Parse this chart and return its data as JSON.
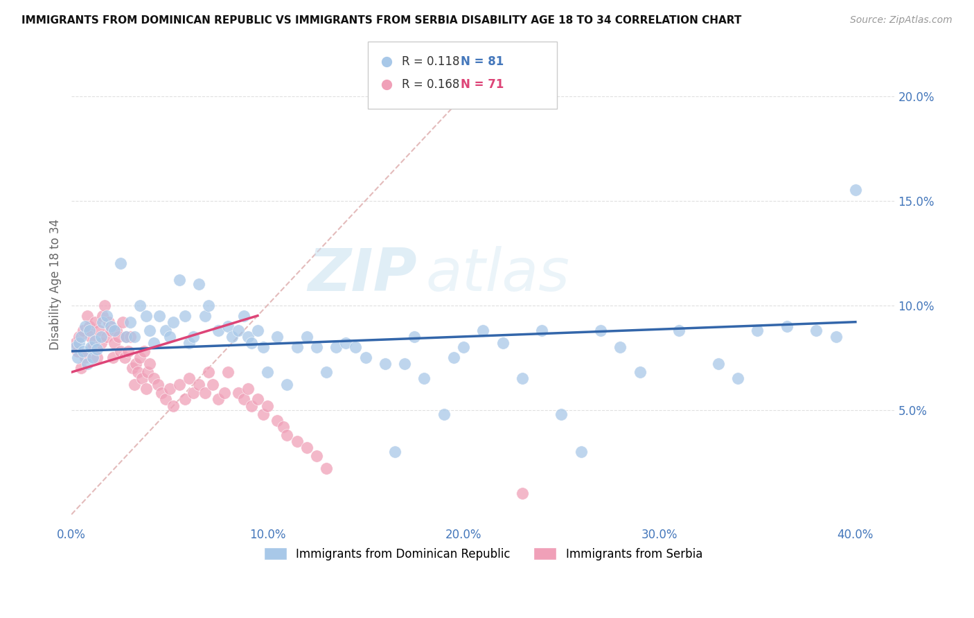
{
  "title": "IMMIGRANTS FROM DOMINICAN REPUBLIC VS IMMIGRANTS FROM SERBIA DISABILITY AGE 18 TO 34 CORRELATION CHART",
  "source": "Source: ZipAtlas.com",
  "ylabel_label": "Disability Age 18 to 34",
  "xlim": [
    0.0,
    0.42
  ],
  "ylim": [
    -0.005,
    0.225
  ],
  "xticks": [
    0.0,
    0.1,
    0.2,
    0.3,
    0.4
  ],
  "xticklabels": [
    "0.0%",
    "10.0%",
    "20.0%",
    "30.0%",
    "40.0%"
  ],
  "yticks": [
    0.05,
    0.1,
    0.15,
    0.2
  ],
  "yticklabels": [
    "5.0%",
    "10.0%",
    "15.0%",
    "20.0%"
  ],
  "blue_color": "#a8c8e8",
  "pink_color": "#f0a0b8",
  "blue_line_color": "#3366aa",
  "pink_line_color": "#dd4477",
  "diagonal_color": "#ddaaaa",
  "R_blue": 0.118,
  "N_blue": 81,
  "R_pink": 0.168,
  "N_pink": 71,
  "legend_blue_label": "Immigrants from Dominican Republic",
  "legend_pink_label": "Immigrants from Serbia",
  "watermark_zip": "ZIP",
  "watermark_atlas": "atlas",
  "blue_line_x0": 0.0,
  "blue_line_y0": 0.078,
  "blue_line_x1": 0.4,
  "blue_line_y1": 0.092,
  "pink_line_x0": 0.0,
  "pink_line_y0": 0.068,
  "pink_line_x1": 0.095,
  "pink_line_y1": 0.095,
  "blue_scatter_x": [
    0.002,
    0.003,
    0.004,
    0.005,
    0.006,
    0.007,
    0.008,
    0.009,
    0.01,
    0.011,
    0.012,
    0.013,
    0.015,
    0.016,
    0.018,
    0.02,
    0.022,
    0.025,
    0.028,
    0.03,
    0.032,
    0.035,
    0.038,
    0.04,
    0.042,
    0.045,
    0.048,
    0.05,
    0.052,
    0.055,
    0.058,
    0.06,
    0.062,
    0.065,
    0.068,
    0.07,
    0.075,
    0.08,
    0.082,
    0.085,
    0.088,
    0.09,
    0.092,
    0.095,
    0.098,
    0.1,
    0.105,
    0.11,
    0.115,
    0.12,
    0.125,
    0.13,
    0.135,
    0.14,
    0.145,
    0.15,
    0.16,
    0.165,
    0.17,
    0.175,
    0.18,
    0.19,
    0.195,
    0.2,
    0.21,
    0.22,
    0.23,
    0.24,
    0.25,
    0.26,
    0.27,
    0.28,
    0.29,
    0.31,
    0.33,
    0.34,
    0.35,
    0.365,
    0.38,
    0.39,
    0.4
  ],
  "blue_scatter_y": [
    0.08,
    0.075,
    0.082,
    0.085,
    0.078,
    0.09,
    0.072,
    0.088,
    0.08,
    0.075,
    0.083,
    0.079,
    0.085,
    0.092,
    0.095,
    0.09,
    0.088,
    0.12,
    0.085,
    0.092,
    0.085,
    0.1,
    0.095,
    0.088,
    0.082,
    0.095,
    0.088,
    0.085,
    0.092,
    0.112,
    0.095,
    0.082,
    0.085,
    0.11,
    0.095,
    0.1,
    0.088,
    0.09,
    0.085,
    0.088,
    0.095,
    0.085,
    0.082,
    0.088,
    0.08,
    0.068,
    0.085,
    0.062,
    0.08,
    0.085,
    0.08,
    0.068,
    0.08,
    0.082,
    0.08,
    0.075,
    0.072,
    0.03,
    0.072,
    0.085,
    0.065,
    0.048,
    0.075,
    0.08,
    0.088,
    0.082,
    0.065,
    0.088,
    0.048,
    0.03,
    0.088,
    0.08,
    0.068,
    0.088,
    0.072,
    0.065,
    0.088,
    0.09,
    0.088,
    0.085,
    0.155
  ],
  "pink_scatter_x": [
    0.002,
    0.003,
    0.004,
    0.005,
    0.006,
    0.007,
    0.008,
    0.009,
    0.01,
    0.011,
    0.012,
    0.013,
    0.014,
    0.015,
    0.016,
    0.017,
    0.018,
    0.019,
    0.02,
    0.021,
    0.022,
    0.023,
    0.024,
    0.025,
    0.026,
    0.027,
    0.028,
    0.029,
    0.03,
    0.031,
    0.032,
    0.033,
    0.034,
    0.035,
    0.036,
    0.037,
    0.038,
    0.039,
    0.04,
    0.042,
    0.044,
    0.046,
    0.048,
    0.05,
    0.052,
    0.055,
    0.058,
    0.06,
    0.062,
    0.065,
    0.068,
    0.07,
    0.072,
    0.075,
    0.078,
    0.08,
    0.085,
    0.088,
    0.09,
    0.092,
    0.095,
    0.098,
    0.1,
    0.105,
    0.108,
    0.11,
    0.115,
    0.12,
    0.125,
    0.13,
    0.23
  ],
  "pink_scatter_y": [
    0.082,
    0.078,
    0.085,
    0.07,
    0.088,
    0.075,
    0.095,
    0.09,
    0.085,
    0.08,
    0.092,
    0.075,
    0.088,
    0.082,
    0.095,
    0.1,
    0.085,
    0.092,
    0.088,
    0.075,
    0.082,
    0.088,
    0.085,
    0.078,
    0.092,
    0.075,
    0.085,
    0.078,
    0.085,
    0.07,
    0.062,
    0.072,
    0.068,
    0.075,
    0.065,
    0.078,
    0.06,
    0.068,
    0.072,
    0.065,
    0.062,
    0.058,
    0.055,
    0.06,
    0.052,
    0.062,
    0.055,
    0.065,
    0.058,
    0.062,
    0.058,
    0.068,
    0.062,
    0.055,
    0.058,
    0.068,
    0.058,
    0.055,
    0.06,
    0.052,
    0.055,
    0.048,
    0.052,
    0.045,
    0.042,
    0.038,
    0.035,
    0.032,
    0.028,
    0.022,
    0.01
  ]
}
